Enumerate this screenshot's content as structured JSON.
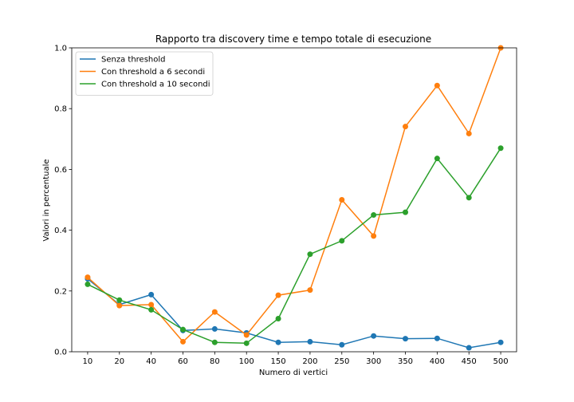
{
  "chart_data": {
    "type": "line",
    "title": "Rapporto tra discovery time e tempo totale di esecuzione",
    "xlabel": "Numero di vertici",
    "ylabel": "Valori in percentuale",
    "categories": [
      "10",
      "20",
      "40",
      "60",
      "80",
      "100",
      "150",
      "200",
      "250",
      "300",
      "350",
      "400",
      "450",
      "500"
    ],
    "ylim": [
      0,
      1.0
    ],
    "yticks": [
      "0.0",
      "0.2",
      "0.4",
      "0.6",
      "0.8",
      "1.0"
    ],
    "grid": false,
    "legend_position": "top-left",
    "series": [
      {
        "name": "Senza threshold",
        "color": "#1f77b4",
        "values": [
          0.24,
          0.155,
          0.188,
          0.07,
          0.075,
          0.062,
          0.031,
          0.033,
          0.023,
          0.052,
          0.043,
          0.044,
          0.013,
          0.031
        ]
      },
      {
        "name": "Con threshold a 6 secondi",
        "color": "#ff7f0e",
        "values": [
          0.245,
          0.152,
          0.155,
          0.033,
          0.131,
          0.055,
          0.186,
          0.203,
          0.5,
          0.381,
          0.741,
          0.876,
          0.718,
          1.0
        ]
      },
      {
        "name": "Con threshold a 10 secondi",
        "color": "#2ca02c",
        "values": [
          0.222,
          0.17,
          0.138,
          0.073,
          0.031,
          0.028,
          0.109,
          0.321,
          0.365,
          0.45,
          0.459,
          0.636,
          0.507,
          0.67
        ]
      }
    ]
  }
}
